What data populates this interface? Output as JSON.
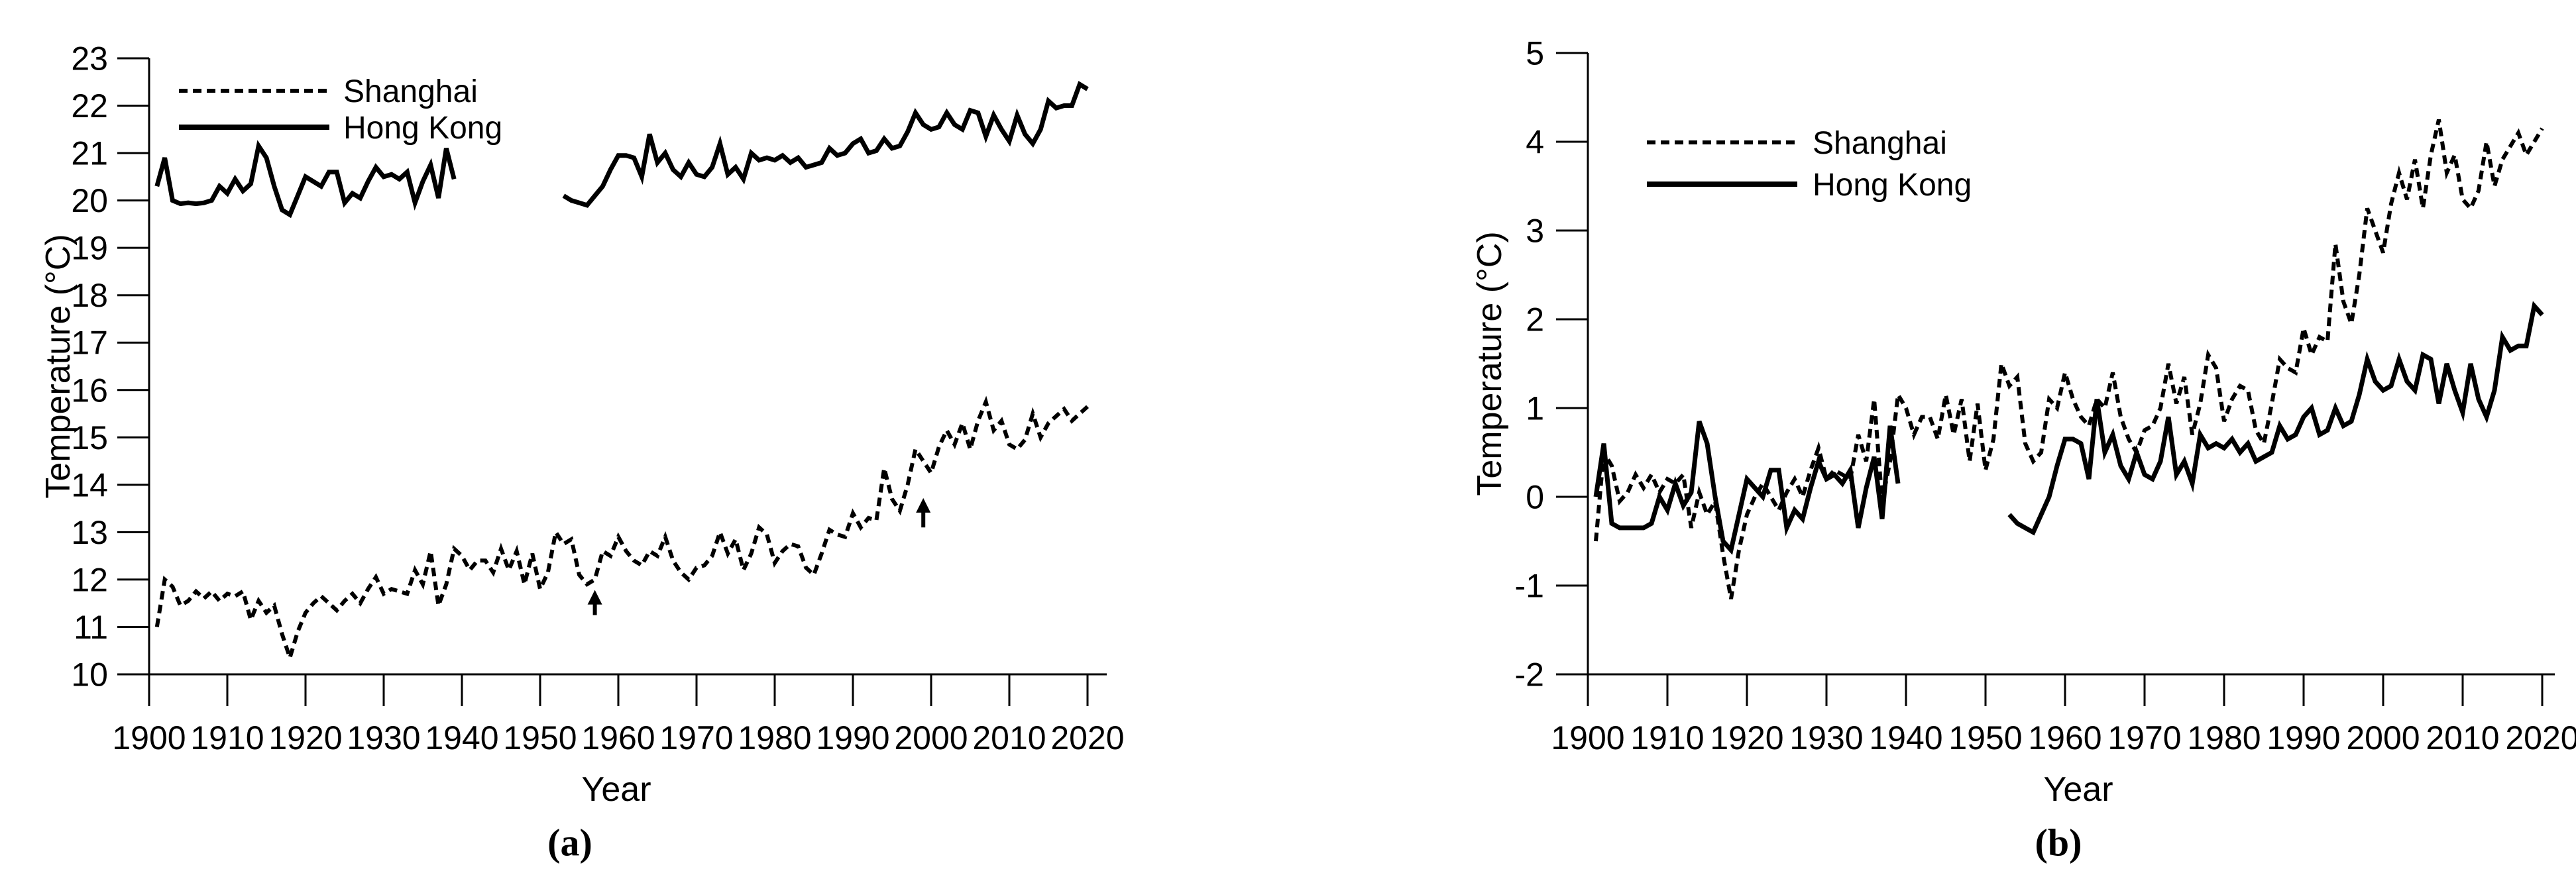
{
  "chart_data": [
    {
      "panel": "a",
      "type": "line",
      "caption": "(a)",
      "xlabel": "Year",
      "ylabel": "Temperature (°C)",
      "xlim": [
        1900,
        2020
      ],
      "ylim": [
        10,
        23
      ],
      "x_ticks": [
        1900,
        1910,
        1920,
        1930,
        1940,
        1950,
        1960,
        1970,
        1980,
        1990,
        2000,
        2010,
        2020
      ],
      "y_ticks": [
        10,
        11,
        12,
        13,
        14,
        15,
        16,
        17,
        18,
        19,
        20,
        21,
        22,
        23
      ],
      "grid": false,
      "legend_position": "top-left-inside",
      "series": [
        {
          "name": "Shanghai",
          "line_style": "dashed",
          "color": "#000000",
          "segments": [
            {
              "start_year": 1901,
              "values": [
                11.0,
                12.0,
                11.85,
                11.45,
                11.55,
                11.75,
                11.6,
                11.75,
                11.55,
                11.7,
                11.65,
                11.75,
                11.15,
                11.55,
                11.3,
                11.45,
                10.85,
                10.35,
                10.9,
                11.3,
                11.5,
                11.65,
                11.5,
                11.35,
                11.55,
                11.7,
                11.5,
                11.8,
                12.05,
                11.7,
                11.8,
                11.75,
                11.7,
                12.2,
                11.9,
                12.6,
                11.45,
                11.9,
                12.65,
                12.5,
                12.2,
                12.4,
                12.4,
                12.15,
                12.65,
                12.2,
                12.6,
                11.9,
                12.55,
                11.8,
                12.15,
                13.0,
                12.75,
                12.85,
                12.1,
                11.9,
                12.0,
                12.6,
                12.5,
                12.9,
                12.6,
                12.4,
                12.3,
                12.6,
                12.5,
                12.9,
                12.4,
                12.15,
                12.0,
                12.25,
                12.3,
                12.5,
                13.0,
                12.55,
                12.85,
                12.2,
                12.55,
                13.1,
                12.95,
                12.35,
                12.6,
                12.75,
                12.7,
                12.25,
                12.1,
                12.55,
                13.05,
                12.95,
                12.9,
                13.4,
                13.1,
                13.3,
                13.25,
                14.35,
                13.7,
                13.45,
                14.0,
                14.75,
                14.5,
                14.25,
                14.8,
                15.15,
                14.85,
                15.3,
                14.75,
                15.35,
                15.75,
                15.15,
                15.35,
                14.85,
                14.75,
                14.95,
                15.5,
                15.0,
                15.3,
                15.45,
                15.6,
                15.35,
                15.5,
                15.65
              ]
            }
          ]
        },
        {
          "name": "Hong Kong",
          "line_style": "solid",
          "color": "#000000",
          "segments": [
            {
              "start_year": 1901,
              "values": [
                20.3,
                20.9,
                20.0,
                19.93,
                19.95,
                19.93,
                19.95,
                20.0,
                20.3,
                20.15,
                20.45,
                20.2,
                20.35,
                21.15,
                20.9,
                20.3,
                19.8,
                19.7,
                20.1,
                20.5,
                20.4,
                20.3,
                20.6,
                20.6,
                19.95,
                20.15,
                20.05,
                20.4,
                20.7,
                20.5,
                20.55,
                20.45,
                20.6,
                19.95,
                20.4,
                20.75,
                20.05,
                21.1,
                20.45
              ]
            },
            {
              "start_year": 1953,
              "values": [
                20.1,
                20.0,
                19.95,
                19.9,
                20.1,
                20.3,
                20.65,
                20.95,
                20.95,
                20.9,
                20.5,
                21.4,
                20.8,
                21.0,
                20.65,
                20.5,
                20.8,
                20.55,
                20.5,
                20.7,
                21.2,
                20.55,
                20.7,
                20.45,
                21.0,
                20.85,
                20.9,
                20.85,
                20.95,
                20.8,
                20.9,
                20.7,
                20.75,
                20.8,
                21.1,
                20.95,
                21.0,
                21.2,
                21.3,
                21.0,
                21.05,
                21.3,
                21.1,
                21.15,
                21.45,
                21.85,
                21.6,
                21.5,
                21.55,
                21.85,
                21.6,
                21.5,
                21.9,
                21.85,
                21.35,
                21.8,
                21.5,
                21.25,
                21.8,
                21.4,
                21.2,
                21.5,
                22.1,
                21.95,
                22.0,
                22.0,
                22.45,
                22.35
              ]
            }
          ]
        }
      ],
      "annotations": [
        {
          "type": "arrow-up",
          "year": 1957,
          "tail_value": 11.25,
          "tip_value": 11.78
        },
        {
          "type": "arrow-up",
          "year": 1999,
          "tail_value": 13.1,
          "tip_value": 13.72
        }
      ]
    },
    {
      "panel": "b",
      "type": "line",
      "caption": "(b)",
      "xlabel": "Year",
      "ylabel": "Temperature (°C)",
      "xlim": [
        1900,
        2020
      ],
      "ylim": [
        -2,
        5
      ],
      "x_ticks": [
        1900,
        1910,
        1920,
        1930,
        1940,
        1950,
        1960,
        1970,
        1980,
        1990,
        2000,
        2010,
        2020
      ],
      "y_ticks": [
        -2,
        -1,
        0,
        1,
        2,
        3,
        4,
        5
      ],
      "grid": false,
      "legend_position": "top-left-inside",
      "series": [
        {
          "name": "Shanghai",
          "line_style": "dashed",
          "color": "#000000",
          "segments": [
            {
              "start_year": 1901,
              "values": [
                -0.5,
                0.5,
                0.35,
                -0.05,
                0.05,
                0.25,
                0.1,
                0.25,
                0.05,
                0.2,
                0.15,
                0.25,
                -0.35,
                0.05,
                -0.2,
                -0.05,
                -0.65,
                -1.15,
                -0.6,
                -0.2,
                0.0,
                0.15,
                0.0,
                -0.15,
                0.05,
                0.2,
                0.0,
                0.3,
                0.55,
                0.2,
                0.3,
                0.25,
                0.2,
                0.7,
                0.4,
                1.1,
                -0.05,
                0.4,
                1.15,
                1.0,
                0.7,
                0.9,
                0.9,
                0.65,
                1.15,
                0.7,
                1.1,
                0.4,
                1.05,
                0.3,
                0.65,
                1.5,
                1.25,
                1.35,
                0.6,
                0.4,
                0.5,
                1.1,
                1.0,
                1.4,
                1.1,
                0.9,
                0.8,
                1.1,
                1.0,
                1.4,
                0.9,
                0.65,
                0.5,
                0.75,
                0.8,
                1.0,
                1.5,
                1.05,
                1.35,
                0.7,
                1.05,
                1.6,
                1.45,
                0.85,
                1.1,
                1.25,
                1.2,
                0.75,
                0.6,
                1.05,
                1.55,
                1.45,
                1.4,
                1.9,
                1.6,
                1.8,
                1.75,
                2.85,
                2.2,
                1.95,
                2.5,
                3.25,
                3.0,
                2.75,
                3.3,
                3.65,
                3.35,
                3.8,
                3.25,
                3.85,
                4.25,
                3.65,
                3.85,
                3.35,
                3.25,
                3.45,
                4.0,
                3.5,
                3.8,
                3.95,
                4.1,
                3.85,
                4.0,
                4.15
              ]
            }
          ]
        },
        {
          "name": "Hong Kong",
          "line_style": "solid",
          "color": "#000000",
          "segments": [
            {
              "start_year": 1901,
              "values": [
                0.0,
                0.6,
                -0.3,
                -0.35,
                -0.35,
                -0.35,
                -0.35,
                -0.3,
                0.0,
                -0.15,
                0.15,
                -0.1,
                0.05,
                0.85,
                0.6,
                0.0,
                -0.5,
                -0.6,
                -0.2,
                0.2,
                0.1,
                0.0,
                0.3,
                0.3,
                -0.35,
                -0.15,
                -0.25,
                0.1,
                0.4,
                0.2,
                0.25,
                0.15,
                0.3,
                -0.35,
                0.1,
                0.45,
                -0.25,
                0.8,
                0.15
              ]
            },
            {
              "start_year": 1953,
              "values": [
                -0.2,
                -0.3,
                -0.35,
                -0.4,
                -0.2,
                0.0,
                0.35,
                0.65,
                0.65,
                0.6,
                0.2,
                1.1,
                0.5,
                0.7,
                0.35,
                0.2,
                0.5,
                0.25,
                0.2,
                0.4,
                0.9,
                0.25,
                0.4,
                0.15,
                0.7,
                0.55,
                0.6,
                0.55,
                0.65,
                0.5,
                0.6,
                0.4,
                0.45,
                0.5,
                0.8,
                0.65,
                0.7,
                0.9,
                1.0,
                0.7,
                0.75,
                1.0,
                0.8,
                0.85,
                1.15,
                1.55,
                1.3,
                1.2,
                1.25,
                1.55,
                1.3,
                1.2,
                1.6,
                1.55,
                1.05,
                1.5,
                1.2,
                0.95,
                1.5,
                1.1,
                0.9,
                1.2,
                1.8,
                1.65,
                1.7,
                1.7,
                2.15,
                2.05
              ]
            }
          ]
        }
      ],
      "annotations": []
    }
  ]
}
